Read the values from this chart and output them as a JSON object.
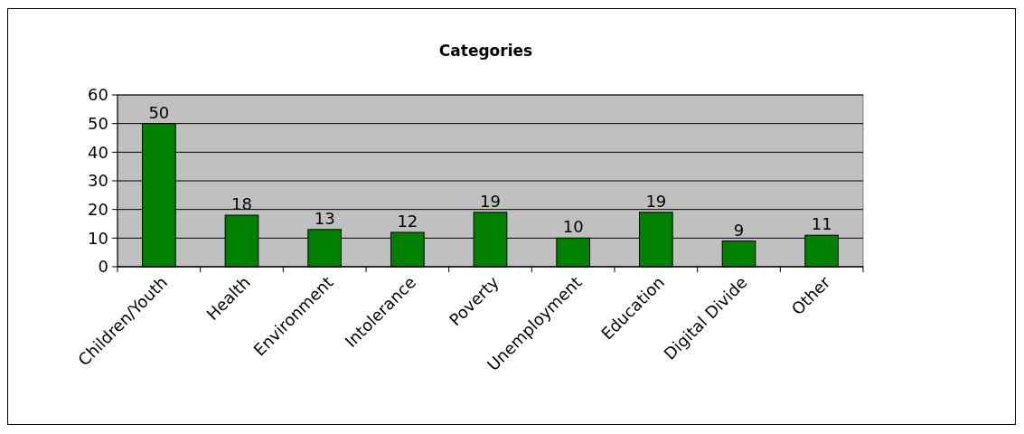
{
  "chart_data": {
    "type": "bar",
    "title": "Categories",
    "categories": [
      "Children/Youth",
      "Health",
      "Environment",
      "Intolerance",
      "Poverty",
      "Unemployment",
      "Education",
      "Digital Divide",
      "Other"
    ],
    "values": [
      50,
      18,
      13,
      12,
      19,
      10,
      19,
      9,
      11
    ],
    "color": "#008000",
    "ylim": [
      0,
      60
    ],
    "yticks": [
      0,
      10,
      20,
      30,
      40,
      50,
      60
    ],
    "grid": "y",
    "data_labels": true
  }
}
